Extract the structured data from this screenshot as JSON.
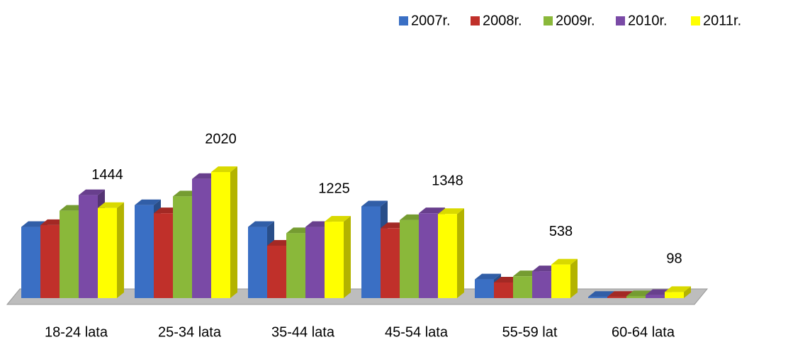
{
  "chart_data": {
    "type": "bar3d",
    "categories": [
      "18-24 lata",
      "25-34 lata",
      "35-44 lata",
      "45-54 lata",
      "55-59 lat",
      "60-64 lata"
    ],
    "series": [
      {
        "name": "2007r.",
        "color": "#3a6fc4",
        "values": [
          1140,
          1490,
          1140,
          1470,
          300,
          20
        ]
      },
      {
        "name": "2008r.",
        "color": "#c0302a",
        "values": [
          1170,
          1360,
          840,
          1120,
          250,
          20
        ]
      },
      {
        "name": "2009r.",
        "color": "#8ab83a",
        "values": [
          1400,
          1630,
          1040,
          1250,
          350,
          30
        ]
      },
      {
        "name": "2010r.",
        "color": "#7a4aa6",
        "values": [
          1650,
          1910,
          1140,
          1360,
          430,
          50
        ]
      },
      {
        "name": "2011r.",
        "color": "#ffff00",
        "values": [
          1444,
          2020,
          1225,
          1348,
          538,
          98
        ]
      }
    ],
    "value_label_series": 4,
    "legend": "top-right"
  }
}
